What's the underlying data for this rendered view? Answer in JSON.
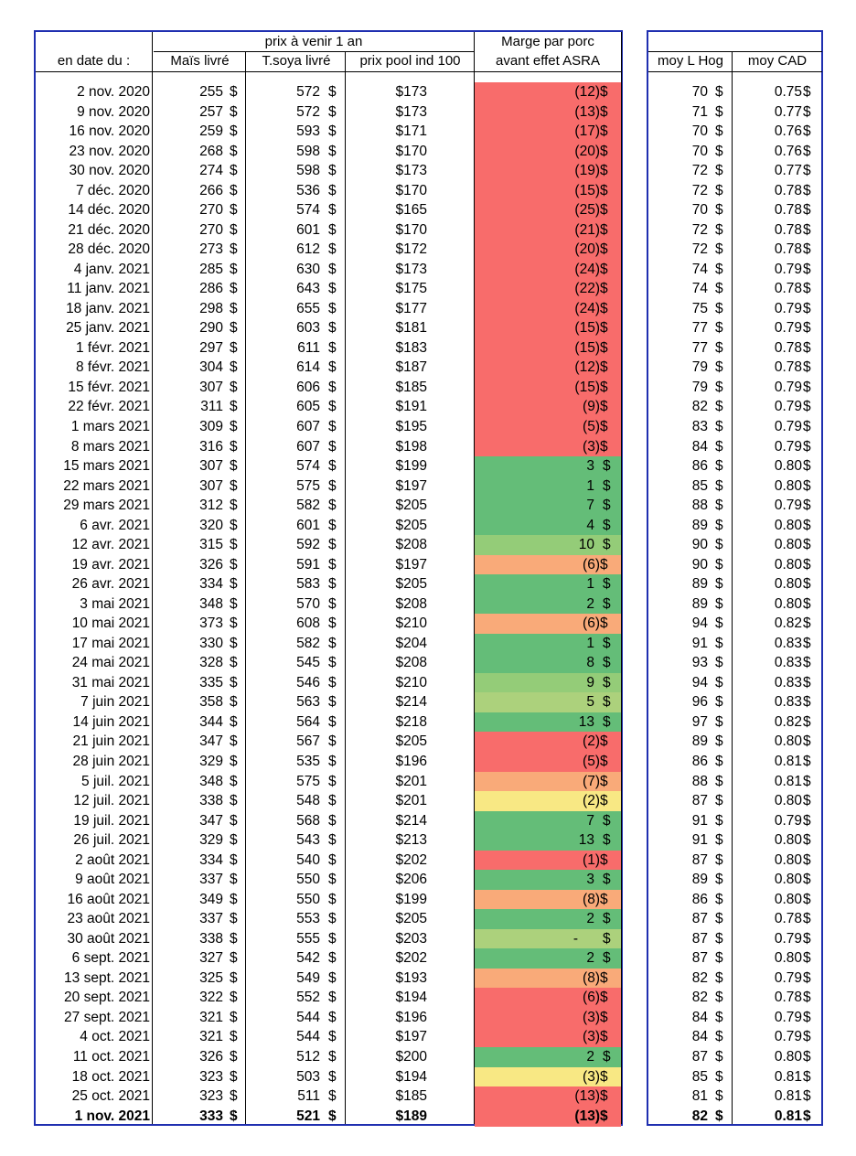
{
  "header": {
    "group_prix": "prix à venir 1 an",
    "marge_line1": "Marge par porc",
    "marge_line2": "avant effet ASRA",
    "col_date": "en date du :",
    "col_mais": "Maïs livré",
    "col_soya": "T.soya livré",
    "col_pool": "prix pool ind 100",
    "col_hog": "moy L Hog",
    "col_cad": "moy CAD"
  },
  "colors": {
    "red": "#f86c6b",
    "orange": "#f9aa79",
    "yellow": "#f8e884",
    "lightgreen": "#acd17c",
    "midgreen": "#94cc78",
    "green": "#64bd78",
    "border_blue": "#1f2fb0"
  },
  "rows": [
    {
      "date": "2 nov. 2020",
      "mais": "255",
      "soya": "572",
      "pool": "$173",
      "marge": "(12)",
      "color": "red",
      "hog": "70",
      "cad": "0.75"
    },
    {
      "date": "9 nov. 2020",
      "mais": "257",
      "soya": "572",
      "pool": "$173",
      "marge": "(13)",
      "color": "red",
      "hog": "71",
      "cad": "0.77"
    },
    {
      "date": "16 nov. 2020",
      "mais": "259",
      "soya": "593",
      "pool": "$171",
      "marge": "(17)",
      "color": "red",
      "hog": "70",
      "cad": "0.76"
    },
    {
      "date": "23 nov. 2020",
      "mais": "268",
      "soya": "598",
      "pool": "$170",
      "marge": "(20)",
      "color": "red",
      "hog": "70",
      "cad": "0.76"
    },
    {
      "date": "30 nov. 2020",
      "mais": "274",
      "soya": "598",
      "pool": "$173",
      "marge": "(19)",
      "color": "red",
      "hog": "72",
      "cad": "0.77"
    },
    {
      "date": "7 déc. 2020",
      "mais": "266",
      "soya": "536",
      "pool": "$170",
      "marge": "(15)",
      "color": "red",
      "hog": "72",
      "cad": "0.78"
    },
    {
      "date": "14 déc. 2020",
      "mais": "270",
      "soya": "574",
      "pool": "$165",
      "marge": "(25)",
      "color": "red",
      "hog": "70",
      "cad": "0.78"
    },
    {
      "date": "21 déc. 2020",
      "mais": "270",
      "soya": "601",
      "pool": "$170",
      "marge": "(21)",
      "color": "red",
      "hog": "72",
      "cad": "0.78"
    },
    {
      "date": "28 déc. 2020",
      "mais": "273",
      "soya": "612",
      "pool": "$172",
      "marge": "(20)",
      "color": "red",
      "hog": "72",
      "cad": "0.78"
    },
    {
      "date": "4 janv. 2021",
      "mais": "285",
      "soya": "630",
      "pool": "$173",
      "marge": "(24)",
      "color": "red",
      "hog": "74",
      "cad": "0.79"
    },
    {
      "date": "11 janv. 2021",
      "mais": "286",
      "soya": "643",
      "pool": "$175",
      "marge": "(22)",
      "color": "red",
      "hog": "74",
      "cad": "0.78"
    },
    {
      "date": "18 janv. 2021",
      "mais": "298",
      "soya": "655",
      "pool": "$177",
      "marge": "(24)",
      "color": "red",
      "hog": "75",
      "cad": "0.79"
    },
    {
      "date": "25 janv. 2021",
      "mais": "290",
      "soya": "603",
      "pool": "$181",
      "marge": "(15)",
      "color": "red",
      "hog": "77",
      "cad": "0.79"
    },
    {
      "date": "1 févr. 2021",
      "mais": "297",
      "soya": "611",
      "pool": "$183",
      "marge": "(15)",
      "color": "red",
      "hog": "77",
      "cad": "0.78"
    },
    {
      "date": "8 févr. 2021",
      "mais": "304",
      "soya": "614",
      "pool": "$187",
      "marge": "(12)",
      "color": "red",
      "hog": "79",
      "cad": "0.78"
    },
    {
      "date": "15 févr. 2021",
      "mais": "307",
      "soya": "606",
      "pool": "$185",
      "marge": "(15)",
      "color": "red",
      "hog": "79",
      "cad": "0.79"
    },
    {
      "date": "22 févr. 2021",
      "mais": "311",
      "soya": "605",
      "pool": "$191",
      "marge": "(9)",
      "color": "red",
      "hog": "82",
      "cad": "0.79"
    },
    {
      "date": "1 mars 2021",
      "mais": "309",
      "soya": "607",
      "pool": "$195",
      "marge": "(5)",
      "color": "red",
      "hog": "83",
      "cad": "0.79"
    },
    {
      "date": "8 mars 2021",
      "mais": "316",
      "soya": "607",
      "pool": "$198",
      "marge": "(3)",
      "color": "red",
      "hog": "84",
      "cad": "0.79"
    },
    {
      "date": "15 mars 2021",
      "mais": "307",
      "soya": "574",
      "pool": "$199",
      "marge": "3",
      "color": "green",
      "hog": "86",
      "cad": "0.80"
    },
    {
      "date": "22 mars 2021",
      "mais": "307",
      "soya": "575",
      "pool": "$197",
      "marge": "1",
      "color": "green",
      "hog": "85",
      "cad": "0.80"
    },
    {
      "date": "29 mars 2021",
      "mais": "312",
      "soya": "582",
      "pool": "$205",
      "marge": "7",
      "color": "green",
      "hog": "88",
      "cad": "0.79"
    },
    {
      "date": "6 avr. 2021",
      "mais": "320",
      "soya": "601",
      "pool": "$205",
      "marge": "4",
      "color": "green",
      "hog": "89",
      "cad": "0.80"
    },
    {
      "date": "12 avr. 2021",
      "mais": "315",
      "soya": "592",
      "pool": "$208",
      "marge": "10",
      "color": "midgreen",
      "hog": "90",
      "cad": "0.80"
    },
    {
      "date": "19 avr. 2021",
      "mais": "326",
      "soya": "591",
      "pool": "$197",
      "marge": "(6)",
      "color": "orange",
      "hog": "90",
      "cad": "0.80"
    },
    {
      "date": "26 avr. 2021",
      "mais": "334",
      "soya": "583",
      "pool": "$205",
      "marge": "1",
      "color": "green",
      "hog": "89",
      "cad": "0.80"
    },
    {
      "date": "3 mai 2021",
      "mais": "348",
      "soya": "570",
      "pool": "$208",
      "marge": "2",
      "color": "green",
      "hog": "89",
      "cad": "0.80"
    },
    {
      "date": "10 mai 2021",
      "mais": "373",
      "soya": "608",
      "pool": "$210",
      "marge": "(6)",
      "color": "orange",
      "hog": "94",
      "cad": "0.82"
    },
    {
      "date": "17 mai 2021",
      "mais": "330",
      "soya": "582",
      "pool": "$204",
      "marge": "1",
      "color": "green",
      "hog": "91",
      "cad": "0.83"
    },
    {
      "date": "24 mai 2021",
      "mais": "328",
      "soya": "545",
      "pool": "$208",
      "marge": "8",
      "color": "green",
      "hog": "93",
      "cad": "0.83"
    },
    {
      "date": "31 mai 2021",
      "mais": "335",
      "soya": "546",
      "pool": "$210",
      "marge": "9",
      "color": "midgreen",
      "hog": "94",
      "cad": "0.83"
    },
    {
      "date": "7 juin 2021",
      "mais": "358",
      "soya": "563",
      "pool": "$214",
      "marge": "5",
      "color": "lightgreen",
      "hog": "96",
      "cad": "0.83"
    },
    {
      "date": "14 juin 2021",
      "mais": "344",
      "soya": "564",
      "pool": "$218",
      "marge": "13",
      "color": "green",
      "hog": "97",
      "cad": "0.82"
    },
    {
      "date": "21 juin 2021",
      "mais": "347",
      "soya": "567",
      "pool": "$205",
      "marge": "(2)",
      "color": "red",
      "hog": "89",
      "cad": "0.80"
    },
    {
      "date": "28 juin 2021",
      "mais": "329",
      "soya": "535",
      "pool": "$196",
      "marge": "(5)",
      "color": "red",
      "hog": "86",
      "cad": "0.81"
    },
    {
      "date": "5 juil. 2021",
      "mais": "348",
      "soya": "575",
      "pool": "$201",
      "marge": "(7)",
      "color": "orange",
      "hog": "88",
      "cad": "0.81"
    },
    {
      "date": "12 juil. 2021",
      "mais": "338",
      "soya": "548",
      "pool": "$201",
      "marge": "(2)",
      "color": "yellow",
      "hog": "87",
      "cad": "0.80"
    },
    {
      "date": "19 juil. 2021",
      "mais": "347",
      "soya": "568",
      "pool": "$214",
      "marge": "7",
      "color": "green",
      "hog": "91",
      "cad": "0.79"
    },
    {
      "date": "26 juil. 2021",
      "mais": "329",
      "soya": "543",
      "pool": "$213",
      "marge": "13",
      "color": "green",
      "hog": "91",
      "cad": "0.80"
    },
    {
      "date": "2 août 2021",
      "mais": "334",
      "soya": "540",
      "pool": "$202",
      "marge": "(1)",
      "color": "red",
      "hog": "87",
      "cad": "0.80"
    },
    {
      "date": "9 août 2021",
      "mais": "337",
      "soya": "550",
      "pool": "$206",
      "marge": "3",
      "color": "green",
      "hog": "89",
      "cad": "0.80"
    },
    {
      "date": "16 août 2021",
      "mais": "349",
      "soya": "550",
      "pool": "$199",
      "marge": "(8)",
      "color": "orange",
      "hog": "86",
      "cad": "0.80"
    },
    {
      "date": "23 août 2021",
      "mais": "337",
      "soya": "553",
      "pool": "$205",
      "marge": "2",
      "color": "green",
      "hog": "87",
      "cad": "0.78"
    },
    {
      "date": "30 août 2021",
      "mais": "338",
      "soya": "555",
      "pool": "$203",
      "marge": "-",
      "color": "lightgreen",
      "hog": "87",
      "cad": "0.79"
    },
    {
      "date": "6 sept. 2021",
      "mais": "327",
      "soya": "542",
      "pool": "$202",
      "marge": "2",
      "color": "green",
      "hog": "87",
      "cad": "0.80"
    },
    {
      "date": "13 sept. 2021",
      "mais": "325",
      "soya": "549",
      "pool": "$193",
      "marge": "(8)",
      "color": "orange",
      "hog": "82",
      "cad": "0.79"
    },
    {
      "date": "20 sept. 2021",
      "mais": "322",
      "soya": "552",
      "pool": "$194",
      "marge": "(6)",
      "color": "red",
      "hog": "82",
      "cad": "0.78"
    },
    {
      "date": "27 sept. 2021",
      "mais": "321",
      "soya": "544",
      "pool": "$196",
      "marge": "(3)",
      "color": "red",
      "hog": "84",
      "cad": "0.79"
    },
    {
      "date": "4 oct. 2021",
      "mais": "321",
      "soya": "544",
      "pool": "$197",
      "marge": "(3)",
      "color": "red",
      "hog": "84",
      "cad": "0.79"
    },
    {
      "date": "11 oct. 2021",
      "mais": "326",
      "soya": "512",
      "pool": "$200",
      "marge": "2",
      "color": "green",
      "hog": "87",
      "cad": "0.80"
    },
    {
      "date": "18 oct. 2021",
      "mais": "323",
      "soya": "503",
      "pool": "$194",
      "marge": "(3)",
      "color": "yellow",
      "hog": "85",
      "cad": "0.81"
    },
    {
      "date": "25 oct. 2021",
      "mais": "323",
      "soya": "511",
      "pool": "$185",
      "marge": "(13)",
      "color": "red",
      "hog": "81",
      "cad": "0.81"
    },
    {
      "date": "1 nov. 2021",
      "mais": "333",
      "soya": "521",
      "pool": "$189",
      "marge": "(13)",
      "color": "red",
      "hog": "82",
      "cad": "0.81",
      "bold": true
    }
  ],
  "currency_symbol": "$"
}
